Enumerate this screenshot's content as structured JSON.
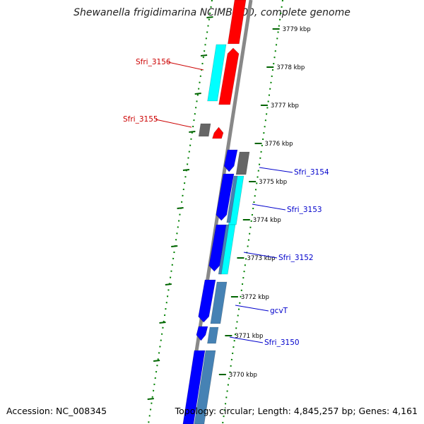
{
  "title": "Shewanella frigidimarina NCIMB 400, complete genome",
  "footer": {
    "accession": "Accession: NC_008345",
    "summary": "Topology: circular; Length: 4,845,257 bp; Genes: 4,161"
  },
  "colors": {
    "forward_cds": "#ff0000",
    "reverse_cds": "#0000ff",
    "cyan_feature": "#00ffff",
    "steelblue_feature": "#4682b4",
    "gray_feature": "#666666",
    "backbone": "#888888",
    "dotted_ring": "#008000",
    "label_red": "#cc0000",
    "label_blue": "#0000cc"
  },
  "scale_ticks": [
    "3779 kbp",
    "3778 kbp",
    "3777 kbp",
    "3776 kbp",
    "3775 kbp",
    "3774 kbp",
    "3773 kbp",
    "3772 kbp",
    "3771 kbp",
    "3770 kbp"
  ],
  "gene_labels": [
    {
      "name": "Sfri_3156",
      "color": "red"
    },
    {
      "name": "Sfri_3155",
      "color": "red"
    },
    {
      "name": "Sfri_3154",
      "color": "blue"
    },
    {
      "name": "Sfri_3153",
      "color": "blue"
    },
    {
      "name": "Sfri_3152",
      "color": "blue"
    },
    {
      "name": "gcvT",
      "color": "blue"
    },
    {
      "name": "Sfri_3150",
      "color": "blue"
    }
  ]
}
